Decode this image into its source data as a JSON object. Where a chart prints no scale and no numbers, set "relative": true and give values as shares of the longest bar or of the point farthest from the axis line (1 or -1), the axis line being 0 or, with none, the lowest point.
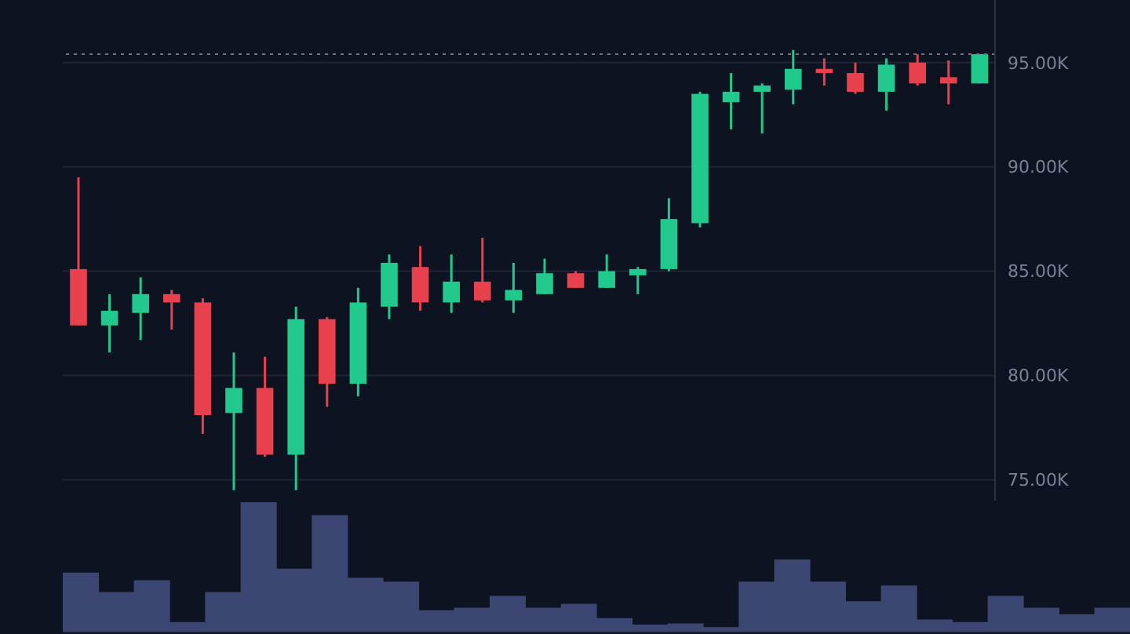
{
  "chart_data": [
    {
      "type": "candlestick",
      "categories": [
        null,
        null,
        null,
        null,
        null,
        null,
        null,
        null,
        null,
        null,
        null,
        null,
        null,
        null,
        null,
        null,
        null,
        null,
        null,
        null,
        null,
        null,
        null,
        null,
        null,
        null,
        null,
        null,
        null,
        null
      ],
      "ohlc": [
        [
          85100,
          89500,
          82400,
          82400
        ],
        [
          82400,
          83900,
          81100,
          83100
        ],
        [
          83000,
          84700,
          81700,
          83900
        ],
        [
          83900,
          84100,
          82200,
          83500
        ],
        [
          83500,
          83700,
          77200,
          78100
        ],
        [
          78200,
          81100,
          74500,
          79400
        ],
        [
          79400,
          80900,
          76100,
          76200
        ],
        [
          76200,
          83300,
          74500,
          82700
        ],
        [
          82700,
          82800,
          78500,
          79600
        ],
        [
          79600,
          84200,
          79000,
          83500
        ],
        [
          83300,
          85800,
          82700,
          85400
        ],
        [
          85200,
          86200,
          83100,
          83500
        ],
        [
          83500,
          85800,
          83000,
          84500
        ],
        [
          84500,
          86600,
          83500,
          83600
        ],
        [
          83600,
          85400,
          83000,
          84100
        ],
        [
          83900,
          85600,
          83900,
          84900
        ],
        [
          84900,
          85000,
          84200,
          84200
        ],
        [
          84200,
          85800,
          84200,
          85000
        ],
        [
          84800,
          85200,
          83900,
          85100
        ],
        [
          85100,
          88500,
          85000,
          87500
        ],
        [
          87300,
          93600,
          87100,
          93500
        ],
        [
          93100,
          94500,
          91800,
          93600
        ],
        [
          93600,
          94000,
          91600,
          93900
        ],
        [
          93700,
          95600,
          93000,
          94700
        ],
        [
          94700,
          95200,
          93900,
          94500
        ],
        [
          94500,
          95000,
          93500,
          93600
        ],
        [
          93600,
          95200,
          92700,
          94900
        ],
        [
          95000,
          95400,
          93900,
          94000
        ],
        [
          94300,
          95100,
          93000,
          94000
        ],
        [
          94000,
          95400,
          94000,
          95400
        ]
      ],
      "colors": [
        "#e8414e",
        "#22c98d",
        "#22c98d",
        "#e8414e",
        "#e8414e",
        "#22c98d",
        "#e8414e",
        "#22c98d",
        "#e8414e",
        "#22c98d",
        "#22c98d",
        "#e8414e",
        "#22c98d",
        "#e8414e",
        "#22c98d",
        "#22c98d",
        "#e8414e",
        "#22c98d",
        "#22c98d",
        "#22c98d",
        "#22c98d",
        "#22c98d",
        "#22c98d",
        "#22c98d",
        "#e8414e",
        "#e8414e",
        "#22c98d",
        "#e8414e",
        "#e8414e",
        "#22c98d"
      ],
      "ylim": [
        74000,
        98000
      ],
      "yticks": [
        {
          "value": 75000,
          "label": "75.00K"
        },
        {
          "value": 80000,
          "label": "80.00K"
        },
        {
          "value": 85000,
          "label": "85.00K"
        },
        {
          "value": 90000,
          "label": "90.00K"
        },
        {
          "value": 95000,
          "label": "95.00K"
        }
      ],
      "grid": "y",
      "tick_labels": "y",
      "ref_lines": [
        {
          "axis": "y",
          "value": 95400,
          "color": "#6b7390",
          "line_style": "dotted"
        }
      ]
    },
    {
      "type": "bar",
      "relative": true,
      "categories": [
        null,
        null,
        null,
        null,
        null,
        null,
        null,
        null,
        null,
        null,
        null,
        null,
        null,
        null,
        null,
        null,
        null,
        null,
        null,
        null,
        null,
        null,
        null,
        null,
        null,
        null,
        null,
        null,
        null,
        null
      ],
      "values": [
        0.46,
        0.31,
        0.4,
        0.08,
        0.31,
        1,
        0.49,
        0.9,
        0.42,
        0.39,
        0.17,
        0.19,
        0.28,
        0.19,
        0.22,
        0.11,
        0.06,
        0.07,
        0.04,
        0.39,
        0.56,
        0.39,
        0.24,
        0.36,
        0.1,
        0.08,
        0.28,
        0.19,
        0.14,
        0.19
      ],
      "color": "#3b4672"
    }
  ]
}
